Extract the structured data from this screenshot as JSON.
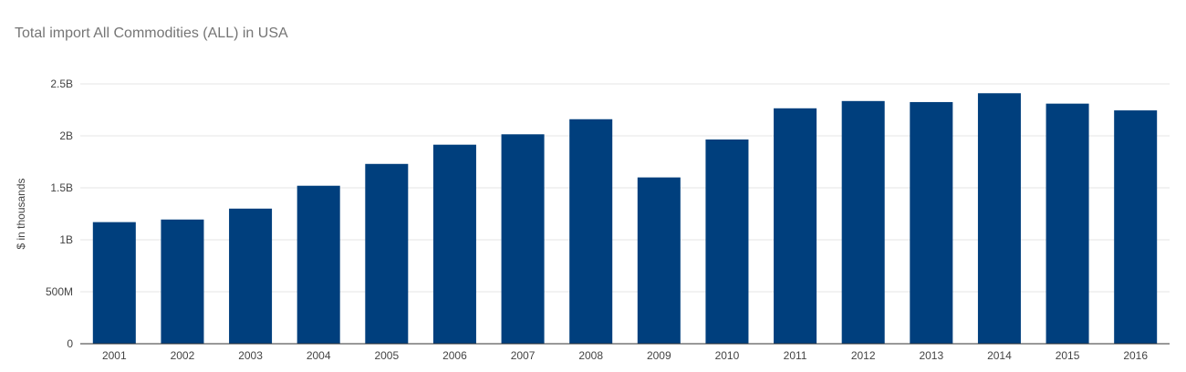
{
  "chart_data": {
    "type": "bar",
    "title": "Total import All Commodities (ALL) in USA",
    "xlabel": "",
    "ylabel": "$ in thousands",
    "categories": [
      "2001",
      "2002",
      "2003",
      "2004",
      "2005",
      "2006",
      "2007",
      "2008",
      "2009",
      "2010",
      "2011",
      "2012",
      "2013",
      "2014",
      "2015",
      "2016"
    ],
    "values": [
      1170000000,
      1195000000,
      1300000000,
      1520000000,
      1730000000,
      1915000000,
      2015000000,
      2160000000,
      1600000000,
      1965000000,
      2265000000,
      2335000000,
      2325000000,
      2410000000,
      2310000000,
      2245000000
    ],
    "ylim": [
      0,
      2500000000
    ],
    "yticks": [
      0,
      500000000,
      1000000000,
      1500000000,
      2000000000,
      2500000000
    ],
    "ytick_labels": [
      "0",
      "500M",
      "1B",
      "1.5B",
      "2B",
      "2.5B"
    ],
    "grid": true,
    "legend": "none",
    "bar_color": "#003f7d",
    "grid_color": "#e6e6e6",
    "axis_color": "#333333"
  }
}
